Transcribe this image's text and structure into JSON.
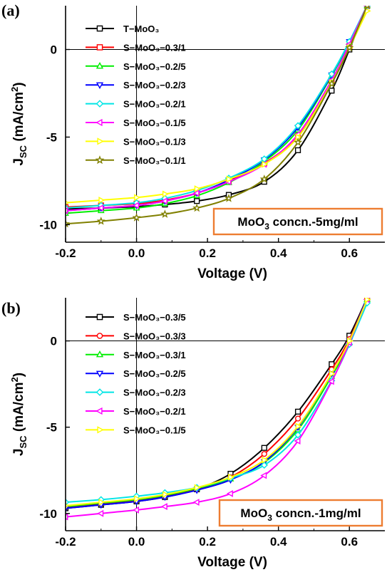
{
  "chart_data": [
    {
      "type": "line",
      "panel_label": "(a)",
      "xlabel": "Voltage (V)",
      "ylabel": "J_SC (mA/cm^2)",
      "ylabel_parts": {
        "main": "J",
        "sub": "SC",
        "unit_pre": " (mA/cm",
        "sup": "2",
        "unit_post": ")"
      },
      "xlim": [
        -0.2,
        0.7
      ],
      "ylim": [
        -11,
        2.5
      ],
      "xticks": [
        -0.2,
        0.0,
        0.2,
        0.4,
        0.6
      ],
      "xtick_labels": [
        "-0.2",
        "0.0",
        "0.2",
        "0.4",
        "0.6"
      ],
      "yticks": [
        0,
        -5,
        -10
      ],
      "ytick_labels": [
        "0",
        "-5",
        "-10"
      ],
      "annotation": {
        "pre": "MoO",
        "sub": "3",
        "post": " concn.-5mg/ml",
        "border_color": "#ED7D31"
      },
      "legend_position": "top-left",
      "series": [
        {
          "name": "T−MoO₃",
          "color": "#000000",
          "marker": "square",
          "x": [
            -0.2,
            -0.1,
            0.0,
            0.08,
            0.17,
            0.26,
            0.36,
            0.455,
            0.55,
            0.6,
            0.65
          ],
          "y": [
            -9.1,
            -9.05,
            -8.97,
            -8.85,
            -8.65,
            -8.3,
            -7.55,
            -5.75,
            -2.35,
            0.0,
            2.5
          ]
        },
        {
          "name": "S−MoO₃−0.3/1",
          "color": "#FF0000",
          "marker": "square",
          "x": [
            -0.2,
            -0.1,
            0.0,
            0.08,
            0.17,
            0.26,
            0.36,
            0.455,
            0.55,
            0.6,
            0.65
          ],
          "y": [
            -9.0,
            -8.9,
            -8.8,
            -8.6,
            -8.2,
            -7.5,
            -6.5,
            -4.9,
            -1.8,
            0.2,
            2.5
          ]
        },
        {
          "name": "S−MoO₃−0.2/5",
          "color": "#00EE00",
          "marker": "triangle-up",
          "x": [
            -0.2,
            -0.1,
            0.0,
            0.08,
            0.17,
            0.26,
            0.36,
            0.455,
            0.55,
            0.6,
            0.65
          ],
          "y": [
            -9.35,
            -9.2,
            -9.05,
            -8.8,
            -8.35,
            -7.6,
            -6.4,
            -4.6,
            -1.5,
            0.4,
            2.5
          ]
        },
        {
          "name": "S−MoO₃−0.2/3",
          "color": "#0000FF",
          "marker": "triangle-down",
          "x": [
            -0.2,
            -0.1,
            0.0,
            0.08,
            0.17,
            0.26,
            0.36,
            0.455,
            0.55,
            0.6,
            0.65
          ],
          "y": [
            -9.2,
            -9.05,
            -8.9,
            -8.65,
            -8.2,
            -7.45,
            -6.3,
            -4.45,
            -1.45,
            0.45,
            2.5
          ]
        },
        {
          "name": "S−MoO₃−0.2/1",
          "color": "#00E5E5",
          "marker": "diamond",
          "x": [
            -0.2,
            -0.1,
            0.0,
            0.08,
            0.17,
            0.26,
            0.36,
            0.455,
            0.55,
            0.6,
            0.65
          ],
          "y": [
            -9.05,
            -8.9,
            -8.75,
            -8.5,
            -8.05,
            -7.35,
            -6.25,
            -4.35,
            -1.4,
            0.45,
            2.5
          ]
        },
        {
          "name": "S−MoO₃−0.1/5",
          "color": "#FF00FF",
          "marker": "triangle-left",
          "x": [
            -0.2,
            -0.1,
            0.0,
            0.08,
            0.17,
            0.26,
            0.36,
            0.455,
            0.55,
            0.6,
            0.65
          ],
          "y": [
            -9.2,
            -9.05,
            -8.9,
            -8.65,
            -8.2,
            -7.55,
            -6.55,
            -4.85,
            -1.75,
            0.3,
            2.5
          ]
        },
        {
          "name": "S−MoO₃−0.1/3",
          "color": "#FFFF00",
          "marker": "triangle-right",
          "x": [
            -0.2,
            -0.1,
            0.0,
            0.08,
            0.17,
            0.26,
            0.36,
            0.455,
            0.55,
            0.6,
            0.65
          ],
          "y": [
            -8.75,
            -8.6,
            -8.45,
            -8.25,
            -7.95,
            -7.4,
            -6.55,
            -5.0,
            -1.9,
            0.1,
            2.2
          ]
        },
        {
          "name": "S−MoO₃−0.1/1",
          "color": "#808000",
          "marker": "star",
          "x": [
            -0.2,
            -0.1,
            0.0,
            0.08,
            0.17,
            0.26,
            0.36,
            0.455,
            0.55,
            0.6,
            0.65
          ],
          "y": [
            -9.95,
            -9.8,
            -9.6,
            -9.4,
            -9.05,
            -8.5,
            -7.4,
            -5.3,
            -1.95,
            0.1,
            2.5
          ]
        }
      ]
    },
    {
      "type": "line",
      "panel_label": "(b)",
      "xlabel": "Voltage (V)",
      "ylabel": "J_SC (mA/cm^2)",
      "ylabel_parts": {
        "main": "J",
        "sub": "SC",
        "unit_pre": " (mA/cm",
        "sup": "2",
        "unit_post": ")"
      },
      "xlim": [
        -0.2,
        0.7
      ],
      "ylim": [
        -11,
        2.5
      ],
      "xticks": [
        -0.2,
        0.0,
        0.2,
        0.4,
        0.6
      ],
      "xtick_labels": [
        "-0.2",
        "0.0",
        "0.2",
        "0.4",
        "0.6"
      ],
      "yticks": [
        0,
        -5,
        -10
      ],
      "ytick_labels": [
        "0",
        "-5",
        "-10"
      ],
      "annotation": {
        "pre": "MoO",
        "sub": "3",
        "post": " concn.-1mg/ml",
        "border_color": "#ED7D31"
      },
      "legend_position": "top-left",
      "series": [
        {
          "name": "S−MoO₃−0.3/5",
          "color": "#000000",
          "marker": "square",
          "x": [
            -0.2,
            -0.1,
            0.0,
            0.08,
            0.17,
            0.265,
            0.36,
            0.455,
            0.55,
            0.6,
            0.65
          ],
          "y": [
            -9.7,
            -9.5,
            -9.3,
            -9.05,
            -8.6,
            -7.7,
            -6.2,
            -4.1,
            -1.35,
            0.3,
            2.5
          ]
        },
        {
          "name": "S−MoO₃−0.3/3",
          "color": "#FF0000",
          "marker": "circle",
          "x": [
            -0.2,
            -0.1,
            0.0,
            0.08,
            0.17,
            0.265,
            0.36,
            0.455,
            0.55,
            0.6,
            0.65
          ],
          "y": [
            -9.65,
            -9.45,
            -9.25,
            -9.0,
            -8.6,
            -7.9,
            -6.55,
            -4.5,
            -1.65,
            0.1,
            2.5
          ]
        },
        {
          "name": "S−MoO₃−0.3/1",
          "color": "#00EE00",
          "marker": "triangle-up",
          "x": [
            -0.2,
            -0.1,
            0.0,
            0.08,
            0.17,
            0.265,
            0.36,
            0.455,
            0.55,
            0.6,
            0.65
          ],
          "y": [
            -9.6,
            -9.4,
            -9.2,
            -8.95,
            -8.55,
            -8.0,
            -7.05,
            -5.15,
            -2.05,
            -0.1,
            2.4
          ]
        },
        {
          "name": "S−MoO₃−0.2/5",
          "color": "#0000FF",
          "marker": "triangle-down",
          "x": [
            -0.2,
            -0.1,
            0.0,
            0.08,
            0.17,
            0.265,
            0.36,
            0.455,
            0.55,
            0.6,
            0.65
          ],
          "y": [
            -9.7,
            -9.5,
            -9.3,
            -9.05,
            -8.65,
            -8.05,
            -7.0,
            -5.0,
            -1.9,
            0.0,
            2.5
          ]
        },
        {
          "name": "S−MoO₃−0.2/3",
          "color": "#00E5E5",
          "marker": "diamond",
          "x": [
            -0.2,
            -0.1,
            0.0,
            0.08,
            0.17,
            0.265,
            0.36,
            0.455,
            0.55,
            0.6,
            0.65
          ],
          "y": [
            -9.35,
            -9.2,
            -9.0,
            -8.8,
            -8.5,
            -7.95,
            -7.2,
            -5.45,
            -2.3,
            -0.2,
            2.2
          ]
        },
        {
          "name": "S−MoO₃−0.2/1",
          "color": "#FF00FF",
          "marker": "triangle-left",
          "x": [
            -0.2,
            -0.1,
            0.0,
            0.08,
            0.17,
            0.265,
            0.36,
            0.455,
            0.55,
            0.6,
            0.65
          ],
          "y": [
            -10.2,
            -10.0,
            -9.8,
            -9.6,
            -9.35,
            -8.85,
            -7.8,
            -5.8,
            -2.35,
            -0.1,
            2.4
          ]
        },
        {
          "name": "S−MoO₃−0.1/5",
          "color": "#FFFF00",
          "marker": "triangle-right",
          "x": [
            -0.2,
            -0.1,
            0.0,
            0.08,
            0.17,
            0.265,
            0.36,
            0.455,
            0.55,
            0.6,
            0.65
          ],
          "y": [
            -9.55,
            -9.35,
            -9.15,
            -8.9,
            -8.5,
            -7.9,
            -6.9,
            -4.95,
            -1.9,
            0.0,
            2.4
          ]
        }
      ]
    }
  ]
}
